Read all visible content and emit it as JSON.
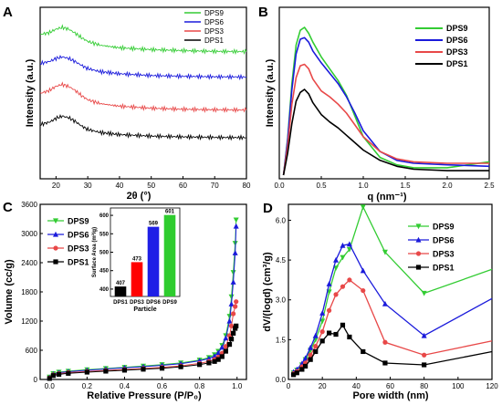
{
  "chart_data": [
    {
      "panel": "A",
      "type": "line",
      "xlabel": "2θ (°)",
      "ylabel": "Intensity (a.u.)",
      "xlim": [
        15,
        80
      ],
      "xticks": [
        20,
        30,
        40,
        50,
        60,
        70,
        80
      ],
      "legend": "top-right",
      "series": [
        {
          "name": "DPS9",
          "color": "#33cc33",
          "offset": 3,
          "x": [
            15,
            18,
            20,
            22,
            24,
            26,
            28,
            30,
            34,
            40,
            50,
            60,
            70,
            80
          ],
          "y": [
            0.72,
            0.8,
            0.93,
            1.0,
            0.93,
            0.78,
            0.6,
            0.45,
            0.3,
            0.2,
            0.13,
            0.09,
            0.06,
            0.05
          ]
        },
        {
          "name": "DPS6",
          "color": "#1a1adb",
          "offset": 2,
          "x": [
            15,
            18,
            20,
            22,
            24,
            26,
            28,
            30,
            34,
            40,
            50,
            60,
            70,
            80
          ],
          "y": [
            0.62,
            0.7,
            0.82,
            0.88,
            0.82,
            0.7,
            0.55,
            0.42,
            0.3,
            0.22,
            0.15,
            0.12,
            0.1,
            0.09
          ]
        },
        {
          "name": "DPS3",
          "color": "#e84848",
          "offset": 1,
          "x": [
            15,
            18,
            20,
            22,
            24,
            26,
            28,
            30,
            34,
            40,
            50,
            60,
            70,
            80
          ],
          "y": [
            0.7,
            0.82,
            0.98,
            1.05,
            0.97,
            0.82,
            0.62,
            0.45,
            0.3,
            0.2,
            0.12,
            0.08,
            0.06,
            0.05
          ]
        },
        {
          "name": "DPS1",
          "color": "#000000",
          "offset": 0,
          "x": [
            15,
            18,
            20,
            22,
            24,
            26,
            28,
            30,
            34,
            40,
            50,
            60,
            70,
            80
          ],
          "y": [
            0.55,
            0.65,
            0.8,
            0.88,
            0.82,
            0.68,
            0.5,
            0.36,
            0.24,
            0.16,
            0.1,
            0.07,
            0.05,
            0.04
          ]
        }
      ]
    },
    {
      "panel": "B",
      "type": "line",
      "xlabel": "q (nm⁻¹)",
      "ylabel": "Intensity (a.u.)",
      "xlim": [
        0,
        2.5
      ],
      "xticks": [
        0.0,
        0.5,
        1.0,
        1.5,
        2.0,
        2.5
      ],
      "legend": "top-right",
      "series": [
        {
          "name": "DPS9",
          "color": "#33cc33",
          "x": [
            0.05,
            0.1,
            0.15,
            0.2,
            0.25,
            0.3,
            0.35,
            0.4,
            0.5,
            0.6,
            0.7,
            0.8,
            0.9,
            1.0,
            1.2,
            1.4,
            1.6,
            2.0,
            2.5
          ],
          "y": [
            0,
            0.25,
            0.62,
            0.88,
            0.98,
            1.0,
            0.96,
            0.9,
            0.8,
            0.72,
            0.64,
            0.54,
            0.4,
            0.26,
            0.12,
            0.07,
            0.05,
            0.05,
            0.09
          ]
        },
        {
          "name": "DPS6",
          "color": "#1a1adb",
          "x": [
            0.05,
            0.1,
            0.15,
            0.2,
            0.25,
            0.3,
            0.35,
            0.4,
            0.5,
            0.6,
            0.7,
            0.8,
            0.9,
            1.0,
            1.2,
            1.4,
            1.6,
            2.0,
            2.5
          ],
          "y": [
            0,
            0.24,
            0.58,
            0.82,
            0.92,
            0.93,
            0.9,
            0.84,
            0.76,
            0.69,
            0.62,
            0.53,
            0.42,
            0.3,
            0.16,
            0.1,
            0.08,
            0.07,
            0.06
          ]
        },
        {
          "name": "DPS3",
          "color": "#e84848",
          "x": [
            0.05,
            0.1,
            0.15,
            0.2,
            0.25,
            0.3,
            0.35,
            0.4,
            0.5,
            0.6,
            0.7,
            0.8,
            0.9,
            1.0,
            1.2,
            1.4,
            1.6,
            2.0,
            2.5
          ],
          "y": [
            0,
            0.2,
            0.48,
            0.66,
            0.74,
            0.75,
            0.72,
            0.65,
            0.57,
            0.53,
            0.48,
            0.42,
            0.34,
            0.26,
            0.16,
            0.11,
            0.09,
            0.08,
            0.08
          ]
        },
        {
          "name": "DPS1",
          "color": "#000000",
          "x": [
            0.05,
            0.1,
            0.15,
            0.2,
            0.25,
            0.3,
            0.35,
            0.4,
            0.5,
            0.6,
            0.7,
            0.8,
            0.9,
            1.0,
            1.2,
            1.4,
            1.6,
            2.0,
            2.5
          ],
          "y": [
            0,
            0.15,
            0.35,
            0.5,
            0.56,
            0.58,
            0.55,
            0.49,
            0.41,
            0.36,
            0.32,
            0.27,
            0.22,
            0.17,
            0.1,
            0.06,
            0.04,
            0.03,
            0.03
          ]
        }
      ]
    },
    {
      "panel": "C",
      "type": "line",
      "xlabel": "Relative Pressure (P/P₀)",
      "ylabel": "Volume (cc/g)",
      "xlim": [
        -0.05,
        1.05
      ],
      "ylim": [
        0,
        3600
      ],
      "xticks": [
        0.0,
        0.2,
        0.4,
        0.6,
        0.8,
        1.0
      ],
      "yticks": [
        0,
        600,
        1200,
        1800,
        2400,
        3000,
        3600
      ],
      "ytick_labels": [
        "0",
        "600",
        "1200",
        "1800",
        "2400",
        "3000",
        "3600"
      ],
      "legend": "top-left",
      "series": [
        {
          "name": "DPS9",
          "color": "#33cc33",
          "marker": "triangle-down",
          "x": [
            0.0,
            0.02,
            0.05,
            0.1,
            0.2,
            0.3,
            0.4,
            0.5,
            0.6,
            0.7,
            0.8,
            0.85,
            0.88,
            0.9,
            0.92,
            0.94,
            0.96,
            0.97,
            0.98,
            0.99,
            0.995
          ],
          "y": [
            50,
            120,
            150,
            170,
            200,
            225,
            250,
            275,
            305,
            340,
            400,
            450,
            510,
            580,
            700,
            900,
            1300,
            1700,
            2200,
            2800,
            3280
          ]
        },
        {
          "name": "DPS6",
          "color": "#1a1adb",
          "marker": "triangle-up",
          "x": [
            0.0,
            0.02,
            0.05,
            0.1,
            0.2,
            0.3,
            0.4,
            0.5,
            0.6,
            0.7,
            0.8,
            0.85,
            0.88,
            0.9,
            0.92,
            0.94,
            0.96,
            0.97,
            0.98,
            0.99,
            0.995
          ],
          "y": [
            40,
            110,
            140,
            160,
            190,
            215,
            240,
            262,
            290,
            325,
            385,
            430,
            480,
            550,
            660,
            850,
            1200,
            1550,
            2000,
            2600,
            3150
          ]
        },
        {
          "name": "DPS3",
          "color": "#e84848",
          "marker": "circle",
          "x": [
            0.0,
            0.02,
            0.05,
            0.1,
            0.2,
            0.3,
            0.4,
            0.5,
            0.6,
            0.7,
            0.8,
            0.85,
            0.88,
            0.9,
            0.92,
            0.94,
            0.96,
            0.97,
            0.98,
            0.99,
            0.995
          ],
          "y": [
            30,
            95,
            120,
            140,
            165,
            185,
            205,
            225,
            250,
            280,
            330,
            370,
            410,
            460,
            540,
            680,
            900,
            1100,
            1350,
            1500,
            1600
          ]
        },
        {
          "name": "DPS1",
          "color": "#000000",
          "marker": "square",
          "x": [
            0.0,
            0.02,
            0.05,
            0.1,
            0.2,
            0.3,
            0.4,
            0.5,
            0.6,
            0.7,
            0.8,
            0.85,
            0.88,
            0.9,
            0.92,
            0.94,
            0.96,
            0.97,
            0.98,
            0.99,
            0.995
          ],
          "y": [
            20,
            80,
            105,
            125,
            150,
            170,
            190,
            210,
            230,
            260,
            305,
            340,
            370,
            410,
            470,
            580,
            720,
            830,
            950,
            1050,
            1100
          ]
        }
      ],
      "inset": {
        "type": "bar",
        "xlabel": "Particle",
        "ylabel": "Surface Area (m²/g)",
        "ylim": [
          380,
          620
        ],
        "yticks": [
          400,
          450,
          500,
          550,
          600
        ],
        "categories": [
          "DPS1",
          "DPS3",
          "DPS6",
          "DPS9"
        ],
        "values": [
          407,
          473,
          569,
          601
        ],
        "value_labels": [
          "407",
          "473",
          "569",
          "601"
        ],
        "colors": [
          "#000000",
          "#ff0000",
          "#1f1fe6",
          "#2ecc2e"
        ]
      }
    },
    {
      "panel": "D",
      "type": "line",
      "xlabel": "Pore width (nm)",
      "ylabel": "dV/(logd) (cm³/g)",
      "xlim": [
        0,
        120
      ],
      "ylim": [
        0,
        6.6
      ],
      "xticks": [
        0,
        20,
        40,
        60,
        80,
        100,
        120
      ],
      "yticks": [
        0.0,
        1.5,
        3.0,
        4.5,
        6.0
      ],
      "ytick_labels": [
        "0.0",
        "1.5",
        "3.0",
        "4.5",
        "6.0"
      ],
      "legend": "top-right",
      "series": [
        {
          "name": "DPS9",
          "color": "#33cc33",
          "marker": "triangle-down",
          "x": [
            3,
            5,
            8,
            10,
            13,
            16,
            20,
            24,
            28,
            32,
            36,
            44,
            57,
            80,
            120
          ],
          "y": [
            0.25,
            0.35,
            0.55,
            0.75,
            1.1,
            1.5,
            2.2,
            3.3,
            4.2,
            4.6,
            4.9,
            6.5,
            4.8,
            3.25,
            4.15
          ]
        },
        {
          "name": "DPS6",
          "color": "#1a1adb",
          "marker": "triangle-up",
          "x": [
            3,
            5,
            8,
            10,
            13,
            16,
            20,
            24,
            28,
            32,
            36,
            44,
            57,
            80,
            120
          ],
          "y": [
            0.28,
            0.38,
            0.6,
            0.8,
            1.2,
            1.65,
            2.5,
            3.6,
            4.5,
            5.05,
            5.1,
            4.1,
            2.85,
            1.65,
            3.05
          ]
        },
        {
          "name": "DPS3",
          "color": "#e84848",
          "marker": "circle",
          "x": [
            3,
            5,
            8,
            10,
            13,
            16,
            20,
            24,
            28,
            32,
            36,
            44,
            57,
            80,
            120
          ],
          "y": [
            0.22,
            0.3,
            0.48,
            0.62,
            0.92,
            1.25,
            1.8,
            2.6,
            3.2,
            3.5,
            3.75,
            3.35,
            1.4,
            0.92,
            1.45
          ]
        },
        {
          "name": "DPS1",
          "color": "#000000",
          "marker": "square",
          "x": [
            3,
            5,
            8,
            10,
            13,
            16,
            20,
            24,
            28,
            32,
            36,
            44,
            57,
            80,
            120
          ],
          "y": [
            0.18,
            0.25,
            0.38,
            0.5,
            0.75,
            1.05,
            1.45,
            1.75,
            1.7,
            2.05,
            1.6,
            1.05,
            0.62,
            0.55,
            1.05
          ]
        }
      ]
    }
  ]
}
